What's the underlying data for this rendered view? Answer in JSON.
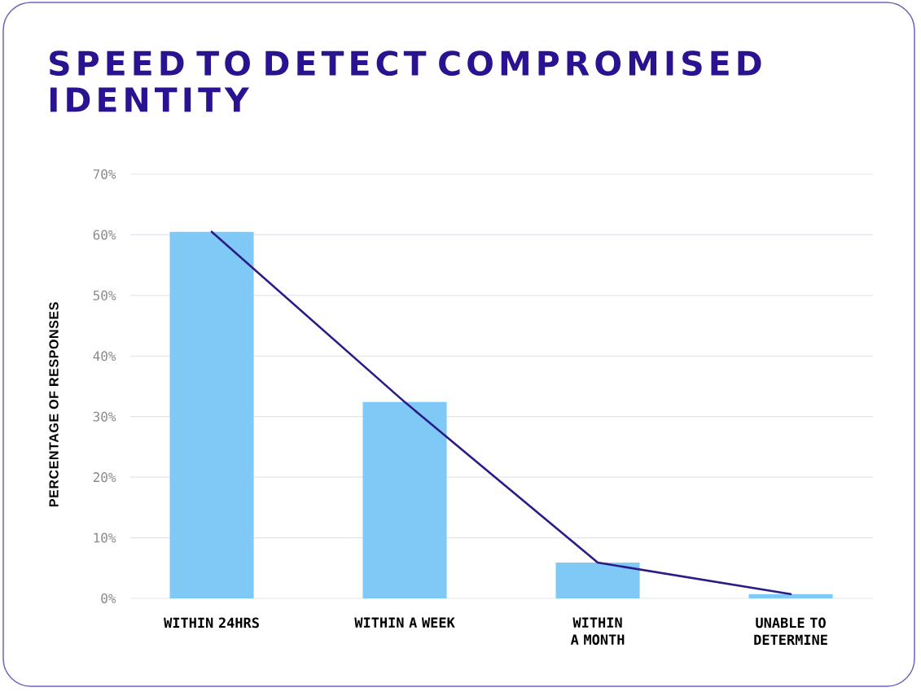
{
  "chart_data": {
    "type": "bar",
    "title": "SPEED TO DETECT COMPROMISED IDENTITY",
    "ylabel": "PERCENTAGE OF RESPONSES",
    "categories": [
      "WITHIN 24HRS",
      "WITHIN A WEEK",
      "WITHIN A MONTH",
      "UNABLE TO DETERMINE"
    ],
    "series": [
      {
        "color": "#7fc9f7",
        "values": [
          60.5,
          32.4,
          5.9,
          0.7
        ]
      },
      {
        "type": "line",
        "color": "#2c1a87",
        "values": [
          60.5,
          32.4,
          5.9,
          0.7
        ]
      }
    ],
    "ylim": [
      0,
      70
    ],
    "yticks": [
      {
        "value": 0,
        "label": "0%"
      },
      {
        "value": 10,
        "label": "10%"
      },
      {
        "value": 20,
        "label": "20%"
      },
      {
        "value": 30,
        "label": "30%"
      },
      {
        "value": 40,
        "label": "40%"
      },
      {
        "value": 50,
        "label": "50%"
      },
      {
        "value": 60,
        "label": "60%"
      },
      {
        "value": 70,
        "label": "70%"
      }
    ],
    "grid": "y"
  }
}
